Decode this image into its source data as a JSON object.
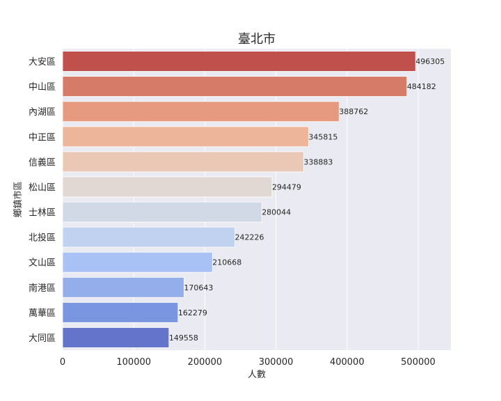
{
  "chart_data": {
    "type": "bar",
    "orientation": "horizontal",
    "title": "臺北市",
    "xlabel": "人數",
    "ylabel": "鄉鎮市區",
    "categories": [
      "大安區",
      "中山區",
      "內湖區",
      "中正區",
      "信義區",
      "松山區",
      "士林區",
      "北投區",
      "文山區",
      "南港區",
      "萬華區",
      "大同區"
    ],
    "values": [
      496305,
      484182,
      388762,
      345815,
      338883,
      294479,
      280044,
      242226,
      210668,
      170643,
      162279,
      149558
    ],
    "data_labels": [
      "496305",
      "484182",
      "388762",
      "345815",
      "338883",
      "294479",
      "280044",
      "242226",
      "210668",
      "170643",
      "162279",
      "149558"
    ],
    "bar_colors": [
      "#c0504c",
      "#d67b67",
      "#e69b80",
      "#edb59a",
      "#ebc7b5",
      "#e1d8d3",
      "#d1d9e6",
      "#c1d2f0",
      "#a9c2f5",
      "#93aeea",
      "#7b96e0",
      "#6474cb"
    ],
    "xticks": [
      0,
      100000,
      200000,
      300000,
      400000,
      500000
    ],
    "xtick_labels": [
      "0",
      "100000",
      "200000",
      "300000",
      "400000",
      "500000"
    ],
    "xlim": [
      0,
      546000
    ],
    "grid": true,
    "background": "#eaeaf2"
  }
}
